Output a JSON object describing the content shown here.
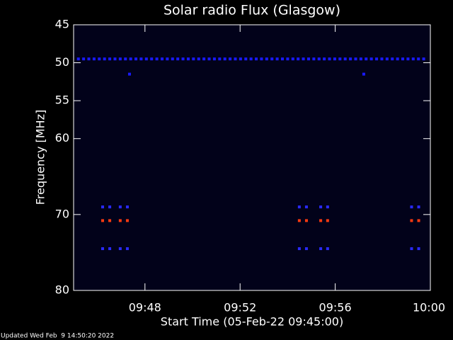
{
  "chart_data": {
    "type": "spectrogram",
    "title": "Solar radio Flux (Glasgow)",
    "x_label": "Start Time (05-Feb-22 09:45:00)",
    "y_label": "Frequency [MHz]",
    "footer": "Updated Wed Feb  9 14:50:20 2022",
    "xlim": [
      45,
      60
    ],
    "xticks": [
      {
        "value": 48,
        "label": "09:48"
      },
      {
        "value": 52,
        "label": "09:52"
      },
      {
        "value": 56,
        "label": "09:56"
      },
      {
        "value": 60,
        "label": "10:00"
      }
    ],
    "ylim": [
      80,
      45
    ],
    "yticks": [
      45,
      50,
      55,
      60,
      70,
      80
    ],
    "background": "#02021a",
    "series": [
      {
        "color": "#1a1aff",
        "x": [
          45.2,
          45.42,
          45.64,
          45.86,
          46.08,
          46.3,
          46.52,
          46.74,
          46.96,
          47.18,
          47.4,
          47.62,
          47.84,
          48.06,
          48.28,
          48.5,
          48.72,
          48.94,
          49.16,
          49.38,
          49.6,
          49.82,
          50.04,
          50.26,
          50.48,
          50.7,
          50.92,
          51.14,
          51.36,
          51.58,
          51.8,
          52.02,
          52.24,
          52.46,
          52.68,
          52.9,
          53.12,
          53.34,
          53.56,
          53.78,
          54,
          54.22,
          54.44,
          54.66,
          54.88,
          55.1,
          55.32,
          55.54,
          55.76,
          55.98,
          56.2,
          56.42,
          56.64,
          56.86,
          57.08,
          57.3,
          57.52,
          57.74,
          57.96,
          58.18,
          58.4,
          58.62,
          58.84,
          59.06,
          59.28,
          59.5,
          59.72,
          47.35,
          57.2
        ],
        "values": [
          49.5,
          49.5,
          49.5,
          49.5,
          49.5,
          49.5,
          49.5,
          49.5,
          49.5,
          49.5,
          49.5,
          49.5,
          49.5,
          49.5,
          49.5,
          49.5,
          49.5,
          49.5,
          49.5,
          49.5,
          49.5,
          49.5,
          49.5,
          49.5,
          49.5,
          49.5,
          49.5,
          49.5,
          49.5,
          49.5,
          49.5,
          49.5,
          49.5,
          49.5,
          49.5,
          49.5,
          49.5,
          49.5,
          49.5,
          49.5,
          49.5,
          49.5,
          49.5,
          49.5,
          49.5,
          49.5,
          49.5,
          49.5,
          49.5,
          49.5,
          49.5,
          49.5,
          49.5,
          49.5,
          49.5,
          49.5,
          49.5,
          49.5,
          49.5,
          49.5,
          49.5,
          49.5,
          49.5,
          49.5,
          49.5,
          49.5,
          49.5,
          51.5,
          51.5
        ]
      },
      {
        "color": "#2a2aff",
        "x": [
          46.22,
          46.52,
          46.96,
          47.26,
          54.49,
          54.79,
          55.39,
          55.68,
          59.21,
          59.51,
          46.22,
          46.52,
          46.96,
          47.26,
          54.49,
          54.79,
          55.39,
          55.68,
          59.21,
          59.51
        ],
        "values": [
          69,
          69,
          69,
          69,
          69,
          69,
          69,
          69,
          69,
          69,
          74.5,
          74.5,
          74.5,
          74.5,
          74.5,
          74.5,
          74.5,
          74.5,
          74.5,
          74.5
        ]
      },
      {
        "color": "#ff3a10",
        "x": [
          46.22,
          46.52,
          46.96,
          47.26,
          54.49,
          54.79,
          55.39,
          55.68,
          59.21,
          59.51
        ],
        "values": [
          70.8,
          70.8,
          70.8,
          70.8,
          70.8,
          70.8,
          70.8,
          70.8,
          70.8,
          70.8
        ]
      }
    ]
  }
}
